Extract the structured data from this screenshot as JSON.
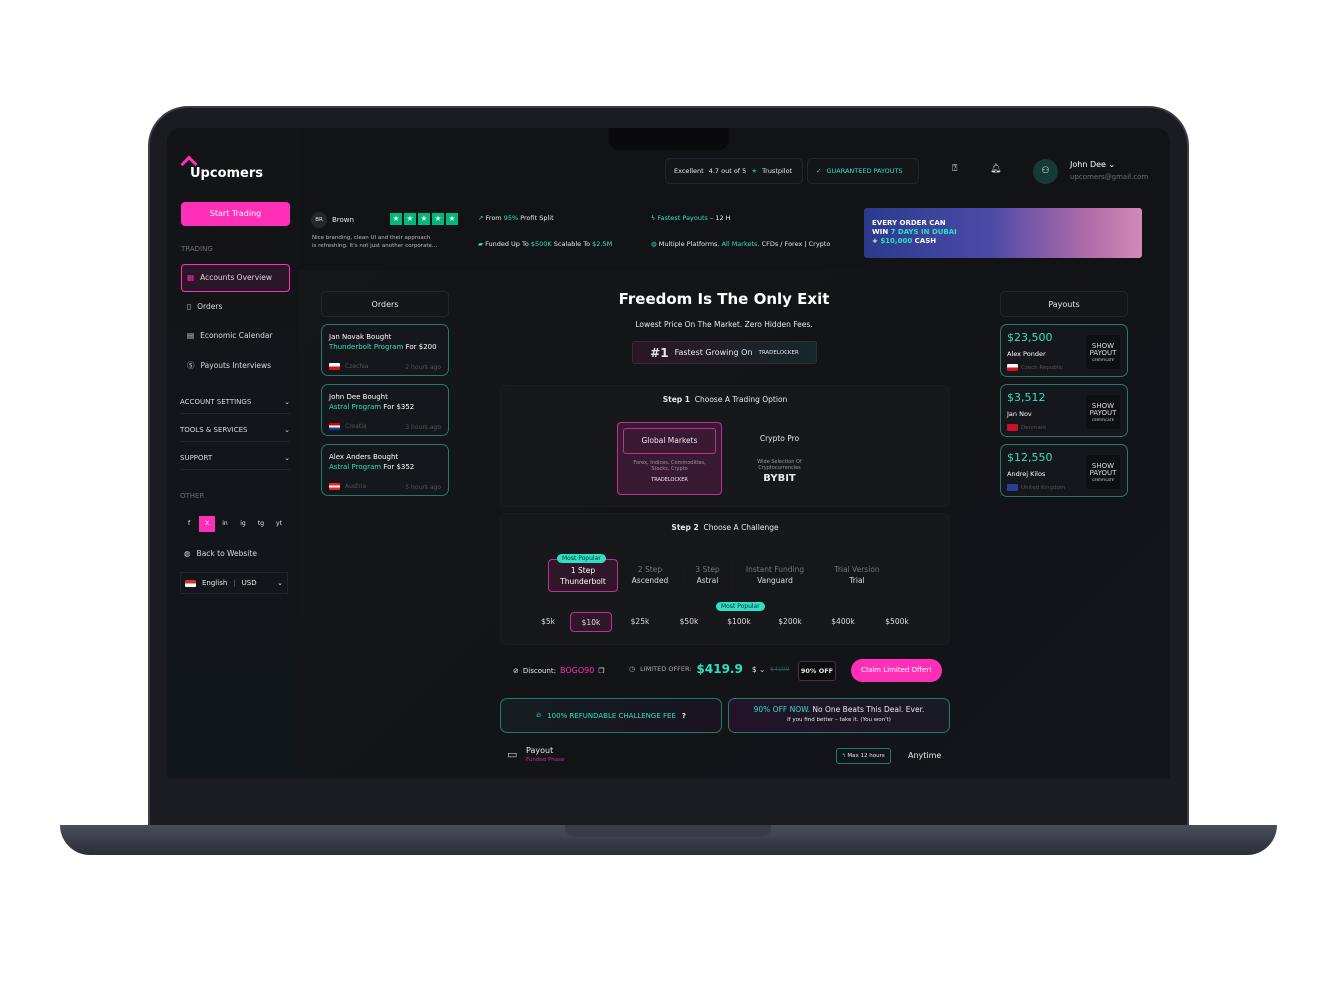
{
  "brand": {
    "name": "Upcomers",
    "accent": "#ff2fb8",
    "teal": "#2fe0c4"
  },
  "topbar": {
    "rating_word": "Excellent",
    "rating": "4.7 out of 5",
    "trustpilot": "Trustpilot",
    "guaranteed": "GUARANTEED PAYOUTS",
    "user_name": "John Dee",
    "user_email": "upcomers@gmail.com"
  },
  "sidebar": {
    "start": "Start Trading",
    "trading_label": "TRADING",
    "items": [
      {
        "label": "Accounts Overview",
        "icon": "grid-icon"
      },
      {
        "label": "Orders",
        "icon": "document-icon"
      },
      {
        "label": "Economic Calendar",
        "icon": "calendar-icon"
      },
      {
        "label": "Payouts Interviews",
        "icon": "dollar-icon"
      }
    ],
    "sections": [
      "ACCOUNT SETTINGS",
      "TOOLS & SERVICES",
      "SUPPORT"
    ],
    "other_label": "OTHER",
    "social": [
      "f",
      "X",
      "in",
      "ig",
      "tg",
      "yt"
    ],
    "back": "Back to Website",
    "language": "English",
    "currency": "USD"
  },
  "review": {
    "initials": "BR",
    "name": "Brown",
    "stars": 5,
    "text1": "Nice branding, clean UI and their approach",
    "text2": "is refreshing. It's not just another corporate..."
  },
  "features": {
    "f1_a": "From ",
    "f1_b": "95%",
    "f1_c": " Profit Split",
    "f2_a": "Funded Up To ",
    "f2_b": "$500K",
    "f2_c": " Scalable To ",
    "f2_d": "$2.5M",
    "f3_a": "Fastest Payouts",
    "f3_b": " – 12 H",
    "f4_a": "Multiple Platforms. ",
    "f4_b": "All Markets.",
    "f4_c": " CFDs / Forex | Crypto"
  },
  "banner": {
    "l1": "EVERY ORDER CAN",
    "l2a": "WIN ",
    "l2b": "7 DAYS IN DUBAI",
    "l3a": "+ ",
    "l3b": "$10,000",
    "l3c": " CASH"
  },
  "orders": {
    "title": "Orders",
    "items": [
      {
        "who": "Jan Novak Bought",
        "program": "Thunderbolt Program",
        "price": " For $200",
        "country": "Czechia",
        "time": "2 hours ago"
      },
      {
        "who": "John Dee Bought",
        "program": "Astral Program",
        "price": " For $352",
        "country": "Croatia",
        "time": "3 hours ago"
      },
      {
        "who": "Alex Anders Bought",
        "program": "Astral Program",
        "price": " For $352",
        "country": "Austria",
        "time": "5 hours ago"
      }
    ]
  },
  "hero": {
    "title": "Freedom Is The Only Exit",
    "subtitle": "Lowest Price On The Market. Zero Hidden Fees.",
    "rank": "#1",
    "rank_text": "Fastest Growing On",
    "platform": "TRADELOCKER"
  },
  "step1": {
    "label": "Step 1",
    "title": "Choose A Trading Option",
    "options": [
      {
        "name": "Global Markets",
        "desc": "Forex, Indices, Commodities, Stocks, Crypto",
        "logo": "TRADELOCKER",
        "selected": true
      },
      {
        "name": "Crypto Pro",
        "desc": "Wide Selection Of Cryptocurrencies",
        "logo": "BYBIT",
        "selected": false
      }
    ]
  },
  "step2": {
    "label": "Step 2",
    "title": "Choose A Challenge",
    "popular": "Most Popular",
    "challenges": [
      {
        "top": "1 Step",
        "bottom": "Thunderbolt",
        "selected": true
      },
      {
        "top": "2 Step",
        "bottom": "Ascended"
      },
      {
        "top": "3 Step",
        "bottom": "Astral"
      },
      {
        "top": "Instant Funding",
        "bottom": "Vanguard"
      },
      {
        "top": "Trial Version",
        "bottom": "Trial"
      }
    ],
    "amounts": [
      "$5k",
      "$10k",
      "$25k",
      "$50k",
      "$100k",
      "$200k",
      "$400k",
      "$500k"
    ],
    "selected_amount": "$10k"
  },
  "offer": {
    "discount_label": "Discount:",
    "code": "BOGO90",
    "limited": "LIMITED OFFER:",
    "price": "$419.9",
    "currency": "$",
    "old_price": "$4199",
    "off": "90% OFF",
    "claim": "Claim Limited Offer!"
  },
  "refund": {
    "text": "100% REFUNDABLE CHALLENGE FEE",
    "q": "?"
  },
  "deal": {
    "a": "90% OFF NOW.",
    "b": " No One Beats This Deal. Ever.",
    "sub": "If you find better – take it. (You won't)"
  },
  "payout_row": {
    "title": "Payout",
    "sub": "Funded Phase",
    "badge": "Max 12 hours",
    "value": "Anytime"
  },
  "payouts": {
    "title": "Payouts",
    "cert": [
      "SHOW",
      "PAYOUT",
      "CERTIFICATE"
    ],
    "items": [
      {
        "amount": "$23,500",
        "name": "Alex Ponder",
        "country": "Czech Republic"
      },
      {
        "amount": "$3,512",
        "name": "Jan Nov",
        "country": "Denmark"
      },
      {
        "amount": "$12,550",
        "name": "Andrej Kilos",
        "country": "United Kingdom"
      }
    ]
  }
}
